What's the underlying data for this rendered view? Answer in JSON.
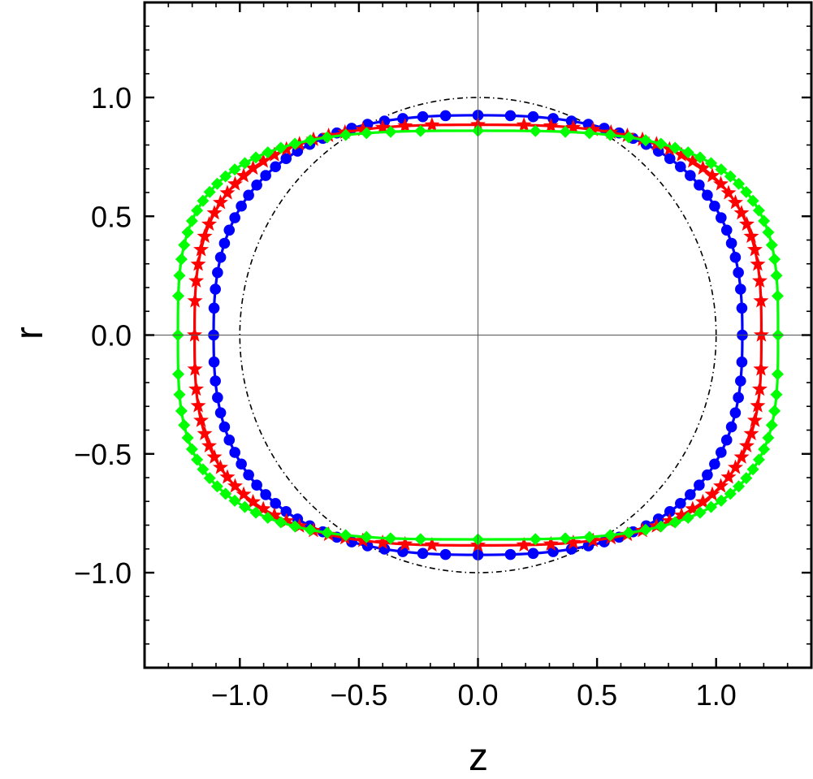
{
  "chart_data": {
    "type": "scatter",
    "title": "",
    "xlabel": "z",
    "ylabel": "r",
    "xlim": [
      -1.4,
      1.4
    ],
    "ylim": [
      -1.4,
      1.4
    ],
    "xticks": [
      -1.0,
      -0.5,
      0.0,
      0.5,
      1.0
    ],
    "yticks": [
      -1.0,
      -0.5,
      0.0,
      0.5,
      1.0
    ],
    "xtick_labels": [
      "−1.0",
      "−0.5",
      "0.0",
      "0.5",
      "1.0"
    ],
    "ytick_labels": [
      "−1.0",
      "−0.5",
      "0.0",
      "0.5",
      "1.0"
    ],
    "grid": false,
    "axes_lines_through_origin": true,
    "series": [
      {
        "style": "dash-dot line",
        "color": "#000000",
        "marker": "none",
        "shape": {
          "a": 1.0,
          "b": 1.0,
          "n": 2.0
        }
      },
      {
        "style": "line + markers",
        "color": "#0000ff",
        "marker": "circle",
        "shape": {
          "a": 1.11,
          "b": 0.925,
          "n": 2.6
        }
      },
      {
        "style": "line + markers",
        "color": "#ff0000",
        "marker": "star",
        "shape": {
          "a": 1.19,
          "b": 0.885,
          "n": 3.0
        }
      },
      {
        "style": "line + markers",
        "color": "#00ff00",
        "marker": "diamond",
        "shape": {
          "a": 1.26,
          "b": 0.86,
          "n": 3.3
        }
      }
    ]
  }
}
